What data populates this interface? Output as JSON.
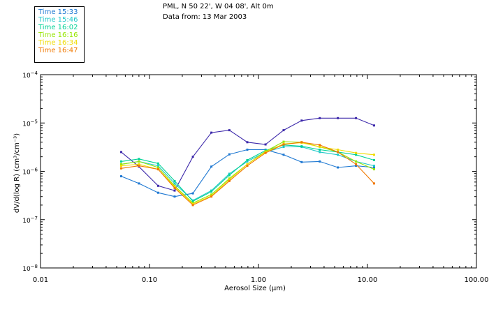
{
  "header": {
    "location": "PML, N 50 22', W 04 08', Alt 0m",
    "date": "Data from: 13 Mar 2003"
  },
  "chart_data": {
    "type": "line",
    "title": "PML, N 50 22', W 04 08', Alt 0m",
    "xlabel": "Aerosol Size (µm)",
    "ylabel": "dV/d(log R) (cm³/cm⁻³)",
    "x_scale": "log",
    "y_scale": "log",
    "xlim": [
      0.01,
      100
    ],
    "ylim": [
      1e-08,
      0.0001
    ],
    "xticks": [
      {
        "value": 0.01,
        "label": "0.01"
      },
      {
        "value": 0.1,
        "label": "0.10"
      },
      {
        "value": 1,
        "label": "1.00"
      },
      {
        "value": 10,
        "label": "10.00"
      },
      {
        "value": 100,
        "label": "100.00"
      }
    ],
    "yticks": [
      {
        "value": 1e-08,
        "mantissa": "10",
        "exponent": "−8"
      },
      {
        "value": 1e-07,
        "mantissa": "10",
        "exponent": "−7"
      },
      {
        "value": 1e-06,
        "mantissa": "10",
        "exponent": "−6"
      },
      {
        "value": 1e-05,
        "mantissa": "10",
        "exponent": "−5"
      },
      {
        "value": 0.0001,
        "mantissa": "10",
        "exponent": "−4"
      }
    ],
    "x": [
      0.055,
      0.08,
      0.12,
      0.17,
      0.25,
      0.37,
      0.54,
      0.79,
      1.16,
      1.7,
      2.49,
      3.65,
      5.35,
      7.85,
      11.5
    ],
    "legend": [
      {
        "name": "Time 15:33",
        "color": "#1e78d2"
      },
      {
        "name": "Time 15:46",
        "color": "#1ec8c8"
      },
      {
        "name": "Time 16:02",
        "color": "#00d296"
      },
      {
        "name": "Time 16:16",
        "color": "#96e600"
      },
      {
        "name": "Time 16:34",
        "color": "#f0dc00"
      },
      {
        "name": "Time 16:47",
        "color": "#f07800"
      }
    ],
    "series": [
      {
        "name": "purple",
        "color": "#3c28aa",
        "values": [
          2.5e-06,
          1.25e-06,
          5e-07,
          4e-07,
          2e-06,
          6.3e-06,
          7.1e-06,
          4e-06,
          3.6e-06,
          7.1e-06,
          1.12e-05,
          1.26e-05,
          1.26e-05,
          1.26e-05,
          8.9e-06
        ]
      },
      {
        "name": "Time 15:33",
        "color": "#1e78d2",
        "values": [
          7.9e-07,
          5.6e-07,
          3.6e-07,
          3e-07,
          3.5e-07,
          1.25e-06,
          2.24e-06,
          2.8e-06,
          2.8e-06,
          2.2e-06,
          1.55e-06,
          1.6e-06,
          1.2e-06,
          1.3e-06,
          1.2e-06
        ]
      },
      {
        "name": "Time 15:46",
        "color": "#1ec8c8",
        "values": [
          1.4e-06,
          1.6e-06,
          1.3e-06,
          5.6e-07,
          2.5e-07,
          4e-07,
          8.9e-07,
          1.6e-06,
          2.5e-06,
          3.2e-06,
          3.2e-06,
          2.5e-06,
          2.2e-06,
          1.6e-06,
          1.3e-06
        ]
      },
      {
        "name": "Time 16:02",
        "color": "#00d296",
        "values": [
          1.6e-06,
          1.8e-06,
          1.45e-06,
          6.3e-07,
          2.4e-07,
          3.8e-07,
          8.3e-07,
          1.7e-06,
          2.7e-06,
          3.5e-06,
          3.3e-06,
          2.8e-06,
          2.5e-06,
          2.2e-06,
          1.7e-06
        ]
      },
      {
        "name": "Time 16:16",
        "color": "#96e600",
        "values": [
          1.4e-06,
          1.6e-06,
          1.2e-06,
          5e-07,
          2.2e-07,
          3.3e-07,
          7.1e-07,
          1.4e-06,
          2.6e-06,
          4.1e-06,
          4e-06,
          3.2e-06,
          2.5e-06,
          1.6e-06,
          1.1e-06
        ]
      },
      {
        "name": "Time 16:34",
        "color": "#f0dc00",
        "values": [
          1.3e-06,
          1.4e-06,
          1.1e-06,
          4.8e-07,
          2.1e-07,
          3.1e-07,
          6.7e-07,
          1.4e-06,
          2.5e-06,
          3.7e-06,
          3.9e-06,
          3.2e-06,
          2.8e-06,
          2.4e-06,
          2.2e-06
        ]
      },
      {
        "name": "Time 16:47",
        "color": "#f07800",
        "values": [
          1.15e-06,
          1.3e-06,
          1.1e-06,
          4.5e-07,
          2e-07,
          3e-07,
          6.3e-07,
          1.3e-06,
          2.4e-06,
          3.6e-06,
          4e-06,
          3.5e-06,
          2.5e-06,
          1.4e-06,
          5.6e-07
        ]
      }
    ]
  }
}
